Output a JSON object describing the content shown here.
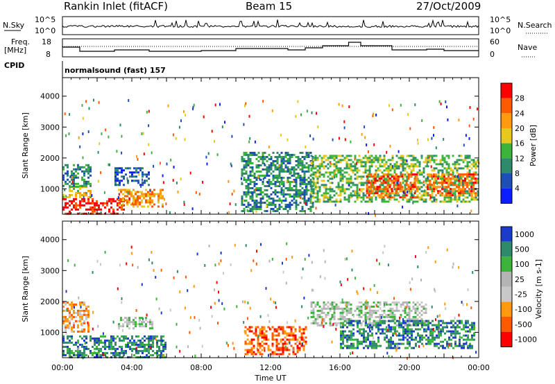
{
  "header": {
    "station": "Rankin Inlet (fitACF)",
    "beam": "Beam 15",
    "date": "27/Oct/2009"
  },
  "strips": {
    "nsky": {
      "label": "N.Sky",
      "ticks": [
        "10^5",
        "10^0"
      ]
    },
    "nsearch": {
      "label": "N.Search",
      "ticks": [
        "10^5",
        "10^0"
      ]
    },
    "freq": {
      "label": "Freq.",
      "unit": "[MHz]",
      "ticks": [
        "18",
        "8"
      ]
    },
    "nave": {
      "label": "Nave",
      "ticks": [
        "60",
        "0"
      ]
    },
    "cpid": {
      "label": "CPID",
      "text": "normalsound (fast) 157"
    }
  },
  "chart_data": [
    {
      "type": "heatmap",
      "name": "power-panel",
      "xlabel": "",
      "ylabel": "Slant Range [km]",
      "xlim_hours": [
        0,
        24
      ],
      "ylim": [
        180,
        4600
      ],
      "yticks": [
        1000,
        2000,
        3000,
        4000
      ],
      "colorbar": {
        "label": "Power [dB]",
        "ticks": [
          "28",
          "24",
          "20",
          "16",
          "12",
          "8",
          "4"
        ],
        "colors": [
          "#ff0000",
          "#ff5a00",
          "#ff9a10",
          "#e6c81e",
          "#3cb43c",
          "#2e8a6a",
          "#1e50b4",
          "#0a1eff"
        ]
      },
      "regions": [
        {
          "t0": 0.0,
          "t1": 3.5,
          "r0": 200,
          "r1": 700,
          "level": 0
        },
        {
          "t0": 0.0,
          "t1": 1.6,
          "r0": 700,
          "r1": 1100,
          "level": 3
        },
        {
          "t0": 0.0,
          "t1": 1.6,
          "r0": 1100,
          "r1": 1800,
          "level": 5
        },
        {
          "t0": 3.2,
          "t1": 5.8,
          "r0": 450,
          "r1": 1000,
          "level": 2
        },
        {
          "t0": 3.0,
          "t1": 5.0,
          "r0": 1100,
          "r1": 1700,
          "level": 6
        },
        {
          "t0": 10.3,
          "t1": 14.5,
          "r0": 300,
          "r1": 2200,
          "level": 5
        },
        {
          "t0": 14.3,
          "t1": 24.0,
          "r0": 600,
          "r1": 2100,
          "level": 4
        },
        {
          "t0": 17.5,
          "t1": 20.5,
          "r0": 700,
          "r1": 1500,
          "level": 1
        },
        {
          "t0": 21.0,
          "t1": 23.8,
          "r0": 800,
          "r1": 1500,
          "level": 1
        }
      ]
    },
    {
      "type": "heatmap",
      "name": "velocity-panel",
      "xlabel": "Time UT",
      "ylabel": "Slant Range [km]",
      "xlim_hours": [
        0,
        24
      ],
      "xticks": [
        "00:00",
        "04:00",
        "08:00",
        "12:00",
        "16:00",
        "20:00",
        "00:00"
      ],
      "ylim": [
        180,
        4600
      ],
      "yticks": [
        1000,
        2000,
        3000,
        4000
      ],
      "colorbar": {
        "label": "Velocity [m s-1]",
        "ticks": [
          "1000",
          "500",
          "100",
          "25",
          "-25",
          "-100",
          "-500",
          "-1000"
        ],
        "colors": [
          "#1a3cc8",
          "#2e8a6a",
          "#3cb43c",
          "#b4b4b4",
          "#c8c8c8",
          "#ff9a10",
          "#ff5a00",
          "#ff0000"
        ]
      },
      "regions": [
        {
          "t0": 0.0,
          "t1": 6.0,
          "r0": 200,
          "r1": 900,
          "level": 1
        },
        {
          "t0": 0.0,
          "t1": 1.5,
          "r0": 1000,
          "r1": 2000,
          "level": 5
        },
        {
          "t0": 3.2,
          "t1": 5.2,
          "r0": 1100,
          "r1": 1500,
          "level": 3
        },
        {
          "t0": 10.5,
          "t1": 14.0,
          "r0": 300,
          "r1": 1200,
          "level": 6
        },
        {
          "t0": 14.3,
          "t1": 21.0,
          "r0": 1200,
          "r1": 2000,
          "level": 3
        },
        {
          "t0": 16.0,
          "t1": 23.8,
          "r0": 500,
          "r1": 1400,
          "level": 1
        }
      ]
    }
  ],
  "colors": {
    "frame": "#000000",
    "background": "#ffffff"
  }
}
